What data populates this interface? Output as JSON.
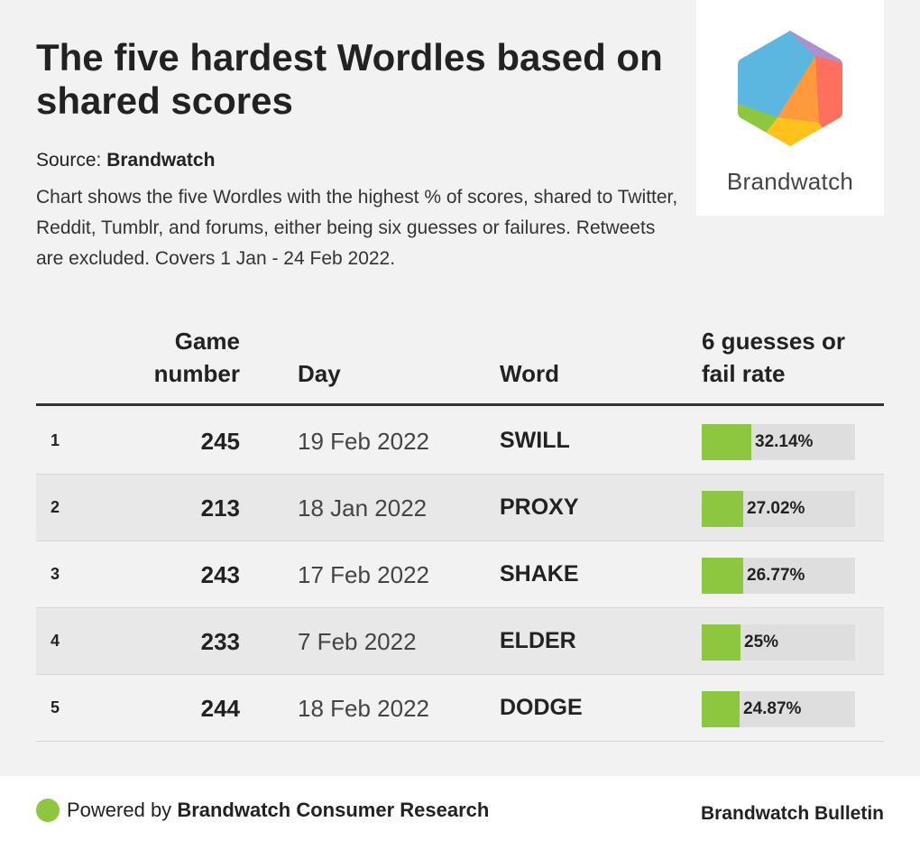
{
  "title": "The five hardest Wordles based on shared scores",
  "source_label": "Source:",
  "source_name": "Brandwatch",
  "description": "Chart shows the five Wordles with the highest % of scores, shared to Twitter, Reddit, Tumblr, and forums, either being six guesses or failures. Retweets are excluded. Covers 1 Jan - 24 Feb 2022.",
  "logo_text": "Brandwatch",
  "colors": {
    "bar": "#8dc63f",
    "track": "#dedede",
    "row_alt": "#e8e8e8"
  },
  "chart_data": {
    "type": "table",
    "title": "The five hardest Wordles based on shared scores",
    "columns": {
      "game": "Game number",
      "day": "Day",
      "word": "Word",
      "rate": "6 guesses or fail rate"
    },
    "rows": [
      {
        "rank": "1",
        "game": "245",
        "day": "19 Feb 2022",
        "word": "SWILL",
        "rate": 32.14,
        "rate_label": "32.14%"
      },
      {
        "rank": "2",
        "game": "213",
        "day": "18 Jan 2022",
        "word": "PROXY",
        "rate": 27.02,
        "rate_label": "27.02%"
      },
      {
        "rank": "3",
        "game": "243",
        "day": "17 Feb 2022",
        "word": "SHAKE",
        "rate": 26.77,
        "rate_label": "26.77%"
      },
      {
        "rank": "4",
        "game": "233",
        "day": "7 Feb 2022",
        "word": "ELDER",
        "rate": 25,
        "rate_label": "25%"
      },
      {
        "rank": "5",
        "game": "244",
        "day": "18 Feb 2022",
        "word": "DODGE",
        "rate": 24.87,
        "rate_label": "24.87%"
      }
    ],
    "rate_scale_max": 100
  },
  "footer": {
    "powered_prefix": "Powered by",
    "powered_name": "Brandwatch Consumer Research",
    "bulletin": "Brandwatch Bulletin"
  }
}
